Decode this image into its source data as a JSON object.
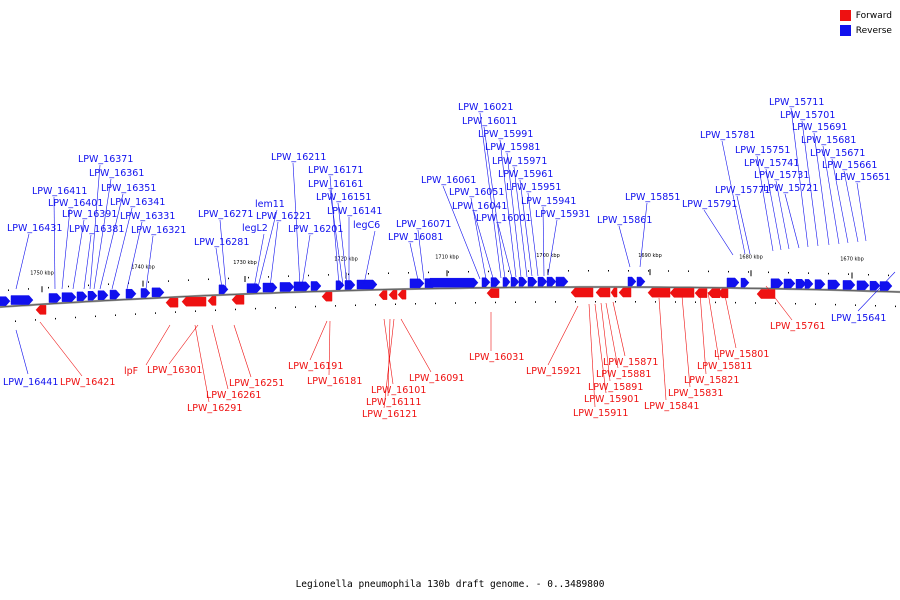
{
  "colors": {
    "forward": "#ee1111",
    "reverse": "#1111ee",
    "backbone": "#777777"
  },
  "legend": {
    "forward": "Forward",
    "reverse": "Reverse"
  },
  "caption": "Legionella pneumophila 130b draft genome. - 0..3489800",
  "ticks": [
    "1750 kbp",
    "1740 kbp",
    "1730 kbp",
    "1720 kbp",
    "1710 kbp",
    "1700 kbp",
    "1690 kbp",
    "1680 kbp",
    "1670 kbp"
  ],
  "reverse_labels": [
    "LPW_16431",
    "LPW_16411",
    "LPW_16401",
    "LPW_16391",
    "LPW_16381",
    "LPW_16371",
    "LPW_16361",
    "LPW_16351",
    "LPW_16341",
    "LPW_16331",
    "LPW_16321",
    "LPW_16281",
    "LPW_16271",
    "legL2",
    "lem11",
    "LPW_16221",
    "LPW_16211",
    "LPW_16201",
    "LPW_16171",
    "LPW_16161",
    "LPW_16151",
    "LPW_16141",
    "legC6",
    "LPW_16081",
    "LPW_16071",
    "LPW_16061",
    "LPW_16051",
    "LPW_16041",
    "LPW_16021",
    "LPW_16011",
    "LPW_16001",
    "LPW_15991",
    "LPW_15981",
    "LPW_15971",
    "LPW_15961",
    "LPW_15951",
    "LPW_15941",
    "LPW_15931",
    "LPW_15861",
    "LPW_15851",
    "LPW_15791",
    "LPW_15781",
    "LPW_15771",
    "LPW_15751",
    "LPW_15741",
    "LPW_15731",
    "LPW_15721",
    "LPW_15711",
    "LPW_15701",
    "LPW_15691",
    "LPW_15681",
    "LPW_15671",
    "LPW_15661",
    "LPW_15651",
    "LPW_16441",
    "LPW_15641"
  ],
  "forward_labels": [
    "LPW_16421",
    "lpF",
    "LPW_16301",
    "LPW_16291",
    "LPW_16261",
    "LPW_16251",
    "LPW_16191",
    "LPW_16181",
    "LPW_16101",
    "LPW_16111",
    "LPW_16121",
    "LPW_16091",
    "LPW_16031",
    "LPW_15921",
    "LPW_15911",
    "LPW_15901",
    "LPW_15891",
    "LPW_15881",
    "LPW_15871",
    "LPW_15841",
    "LPW_15831",
    "LPW_15821",
    "LPW_15811",
    "LPW_15801",
    "LPW_15761"
  ]
}
